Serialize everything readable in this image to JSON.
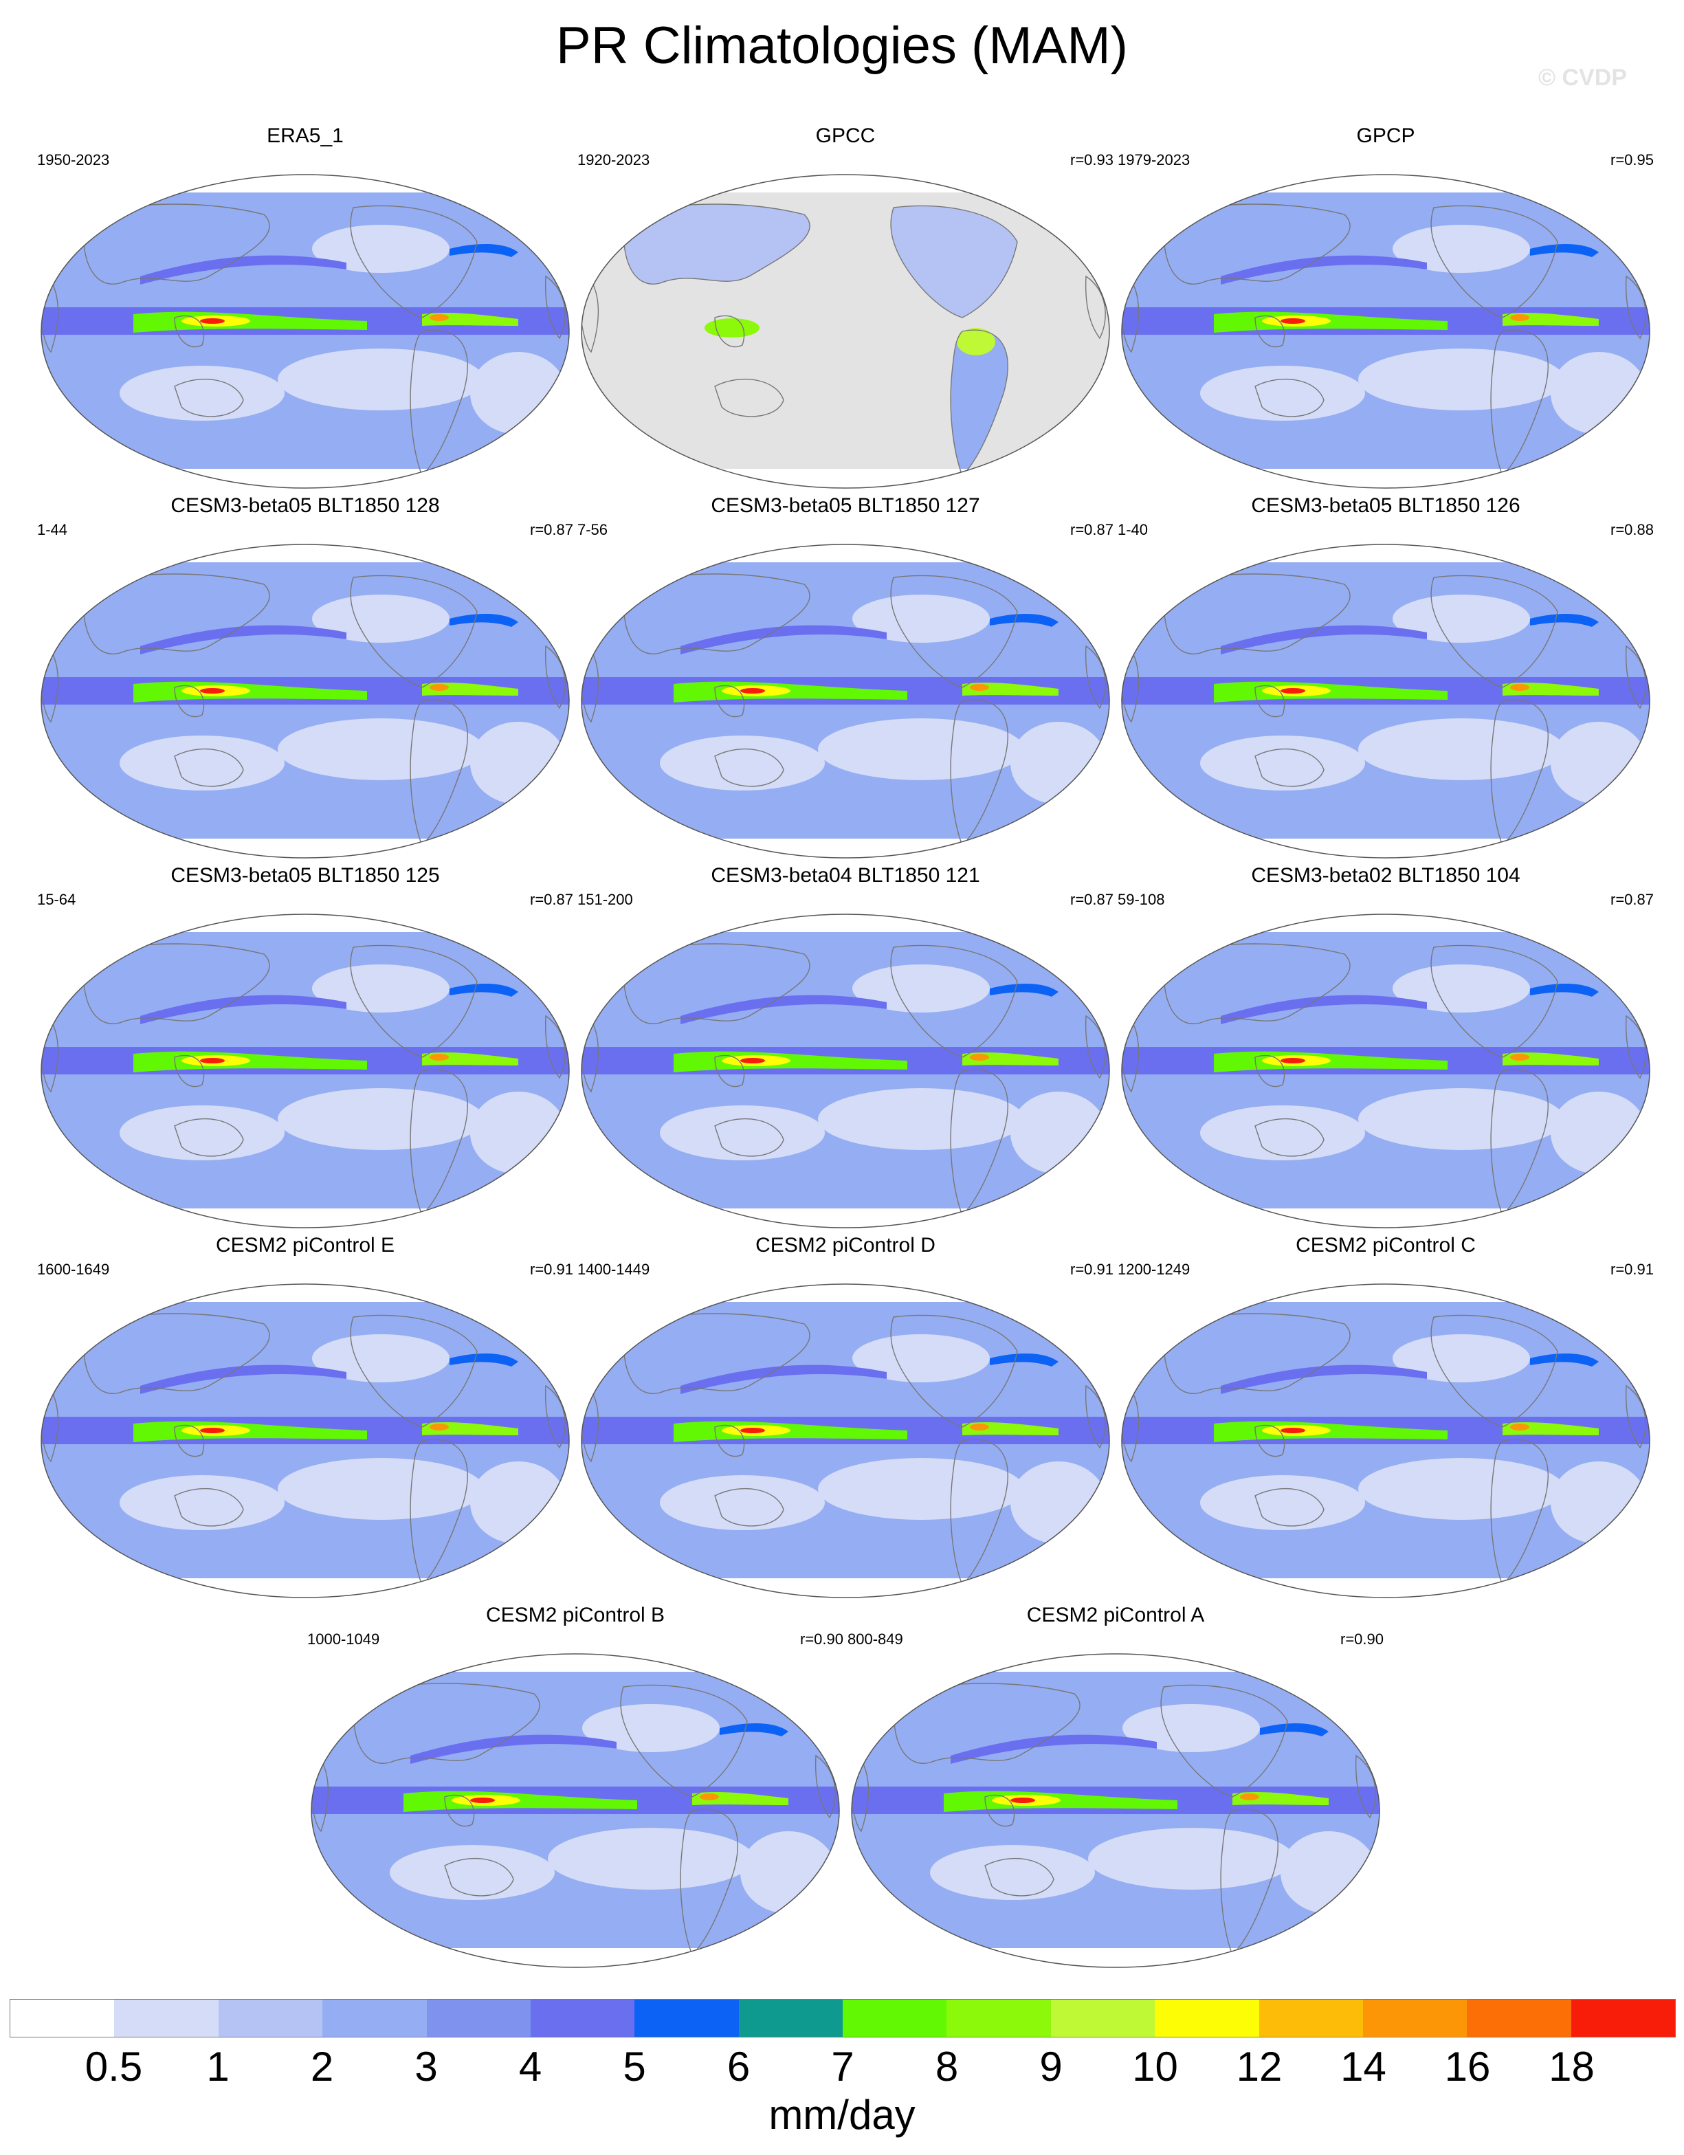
{
  "title": "PR Climatologies (MAM)",
  "watermark": "© CVDP",
  "panels": [
    {
      "title": "ERA5_1",
      "years": "1950-2023",
      "r": ""
    },
    {
      "title": "GPCC",
      "years": "1920-2023",
      "r": "r=0.93"
    },
    {
      "title": "GPCP",
      "years": "1979-2023",
      "r": "r=0.95"
    },
    {
      "title": "CESM3-beta05 BLT1850 128",
      "years": "1-44",
      "r": "r=0.87"
    },
    {
      "title": "CESM3-beta05 BLT1850 127",
      "years": "7-56",
      "r": "r=0.87"
    },
    {
      "title": "CESM3-beta05 BLT1850 126",
      "years": "1-40",
      "r": "r=0.88"
    },
    {
      "title": "CESM3-beta05 BLT1850 125",
      "years": "15-64",
      "r": "r=0.87"
    },
    {
      "title": "CESM3-beta04 BLT1850 121",
      "years": "151-200",
      "r": "r=0.87"
    },
    {
      "title": "CESM3-beta02 BLT1850 104",
      "years": "59-108",
      "r": "r=0.87"
    },
    {
      "title": "CESM2 piControl E",
      "years": "1600-1649",
      "r": "r=0.91"
    },
    {
      "title": "CESM2 piControl D",
      "years": "1400-1449",
      "r": "r=0.91"
    },
    {
      "title": "CESM2 piControl C",
      "years": "1200-1249",
      "r": "r=0.91"
    },
    {
      "title": "CESM2 piControl B",
      "years": "1000-1049",
      "r": "r=0.90"
    },
    {
      "title": "CESM2 piControl A",
      "years": "800-849",
      "r": "r=0.90"
    }
  ],
  "colorbar": {
    "units": "mm/day",
    "labels": [
      "0.5",
      "1",
      "2",
      "3",
      "4",
      "5",
      "6",
      "7",
      "8",
      "9",
      "10",
      "12",
      "14",
      "16",
      "18"
    ],
    "colors": [
      "#ffffff",
      "#d4dcf7",
      "#b4c3f4",
      "#95adf2",
      "#7f93ee",
      "#6a6ff0",
      "#0b62f5",
      "#0e9a8e",
      "#62f804",
      "#8cf80a",
      "#bff935",
      "#fdfd06",
      "#fdbc07",
      "#fd9606",
      "#fb6f06",
      "#f81d08"
    ]
  },
  "colors": {
    "ocean_land_outline": "#777777",
    "missing": "#e3e3e3"
  }
}
